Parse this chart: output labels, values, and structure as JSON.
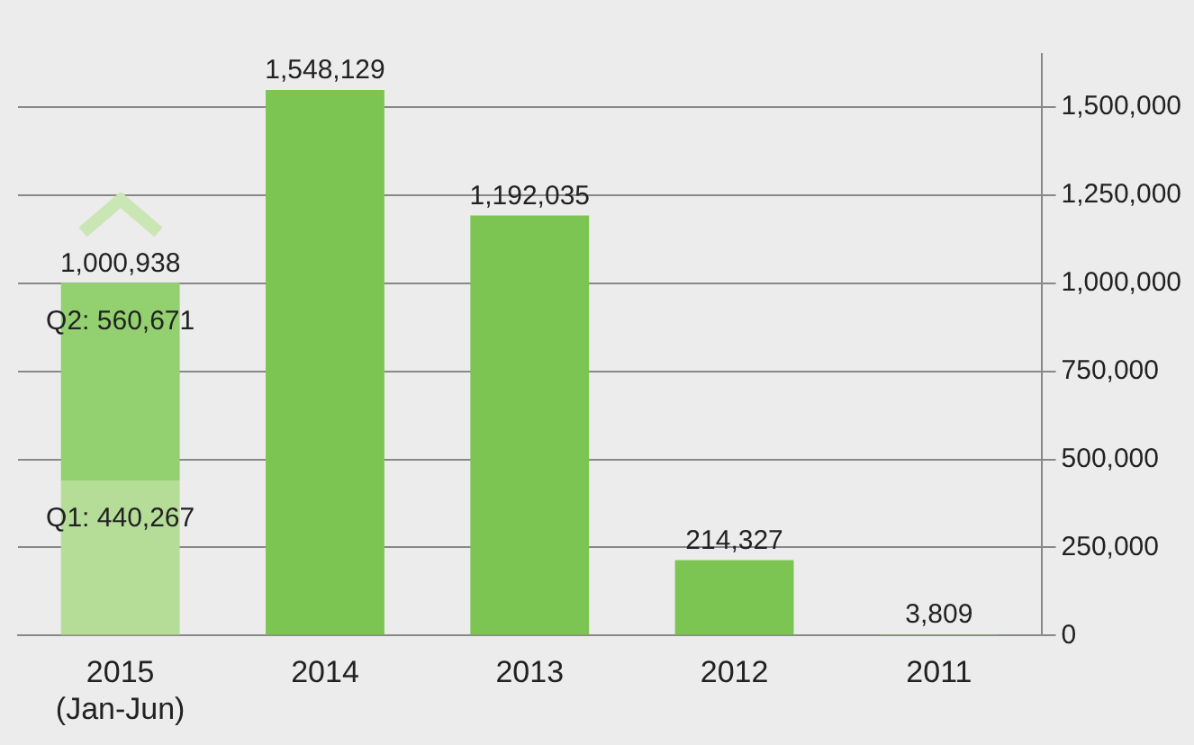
{
  "chart_data": {
    "type": "bar",
    "stacked": true,
    "categories": [
      "2015\n(Jan-Jun)",
      "2014",
      "2013",
      "2012",
      "2011"
    ],
    "series": [
      {
        "colors": [
          "#b5dd98",
          "#7cc552",
          "#7cc552",
          "#7cc552",
          "#7cc552"
        ],
        "values": [
          440267,
          1548129,
          1192035,
          214327,
          3809
        ],
        "value_labels": [
          "Q1: 440,267",
          "1,548,129",
          "1,192,035",
          "214,327",
          "3,809"
        ]
      },
      {
        "color": "#93d070",
        "values": [
          560671,
          null,
          null,
          null,
          null
        ],
        "value_labels": [
          "Q2: 560,671",
          null,
          null,
          null,
          null
        ]
      }
    ],
    "totals": [
      "1,000,938",
      null,
      null,
      null,
      null
    ],
    "ylim": [
      0,
      1650000
    ],
    "yticks": [
      {
        "value": 0,
        "label": "0"
      },
      {
        "value": 250000,
        "label": "250,000"
      },
      {
        "value": 500000,
        "label": "500,000"
      },
      {
        "value": 750000,
        "label": "750,000"
      },
      {
        "value": 1000000,
        "label": "1,000,000"
      },
      {
        "value": 1250000,
        "label": "1,250,000"
      },
      {
        "value": 1500000,
        "label": "1,500,000"
      }
    ],
    "grid": "y",
    "legend": false
  }
}
